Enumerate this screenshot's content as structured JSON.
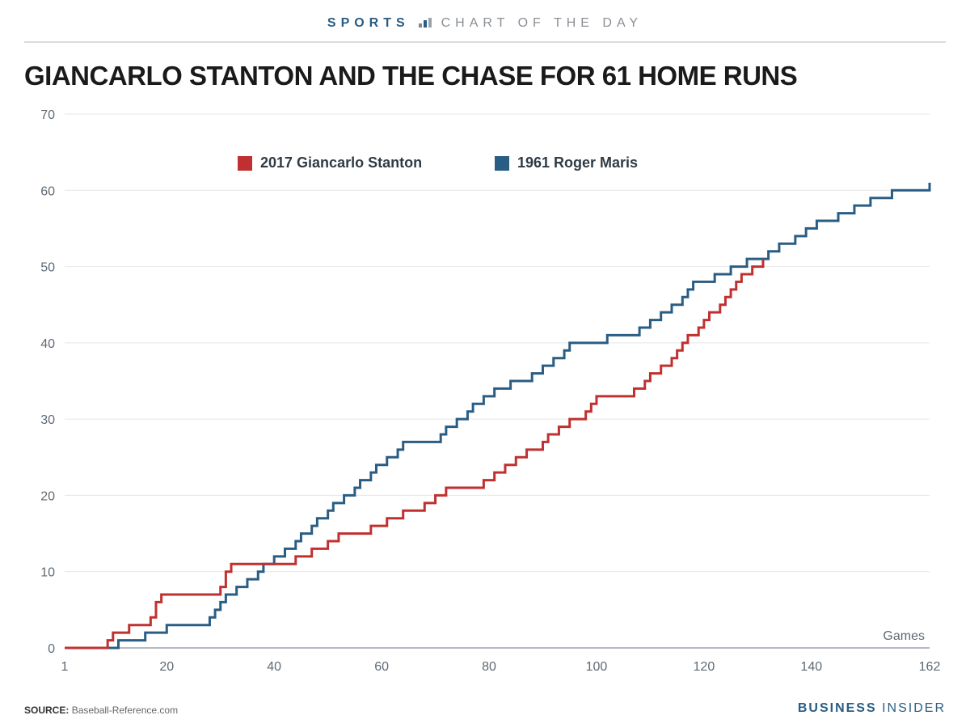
{
  "header": {
    "prefix": "SPORTS",
    "suffix": "CHART OF THE DAY"
  },
  "title": "GIANCARLO STANTON AND THE CHASE FOR 61 HOME RUNS",
  "chart": {
    "type": "line-step",
    "x_axis": {
      "label": "Games",
      "min": 1,
      "max": 162,
      "ticks": [
        1,
        20,
        40,
        60,
        80,
        100,
        120,
        140,
        162
      ]
    },
    "y_axis": {
      "min": 0,
      "max": 70,
      "ticks": [
        0,
        10,
        20,
        30,
        40,
        50,
        60,
        70
      ]
    },
    "grid_color": "#e4e7e9",
    "axis_color": "#9aa3ab",
    "background_color": "#ffffff",
    "legend": {
      "items": [
        {
          "label": "2017 Giancarlo Stanton",
          "color": "#c13030"
        },
        {
          "label": "1961 Roger Maris",
          "color": "#2a5d84"
        }
      ]
    },
    "series": [
      {
        "name": "2017 Giancarlo Stanton",
        "color": "#c13030",
        "x_max": 131,
        "values": [
          0,
          0,
          0,
          0,
          0,
          0,
          0,
          0,
          1,
          2,
          2,
          2,
          3,
          3,
          3,
          3,
          4,
          6,
          7,
          7,
          7,
          7,
          7,
          7,
          7,
          7,
          7,
          7,
          7,
          8,
          10,
          11,
          11,
          11,
          11,
          11,
          11,
          11,
          11,
          11,
          11,
          11,
          11,
          12,
          12,
          12,
          13,
          13,
          13,
          14,
          14,
          15,
          15,
          15,
          15,
          15,
          15,
          16,
          16,
          16,
          17,
          17,
          17,
          18,
          18,
          18,
          18,
          19,
          19,
          20,
          20,
          21,
          21,
          21,
          21,
          21,
          21,
          21,
          22,
          22,
          23,
          23,
          24,
          24,
          25,
          25,
          26,
          26,
          26,
          27,
          28,
          28,
          29,
          29,
          30,
          30,
          30,
          31,
          32,
          33,
          33,
          33,
          33,
          33,
          33,
          33,
          34,
          34,
          35,
          36,
          36,
          37,
          37,
          38,
          39,
          40,
          41,
          41,
          42,
          43,
          44,
          44,
          45,
          46,
          47,
          48,
          49,
          49,
          50,
          50,
          51
        ]
      },
      {
        "name": "1961 Roger Maris",
        "color": "#2a5d84",
        "x_max": 162,
        "values": [
          0,
          0,
          0,
          0,
          0,
          0,
          0,
          0,
          0,
          0,
          1,
          1,
          1,
          1,
          1,
          2,
          2,
          2,
          2,
          3,
          3,
          3,
          3,
          3,
          3,
          3,
          3,
          4,
          5,
          6,
          7,
          7,
          8,
          8,
          9,
          9,
          10,
          11,
          11,
          12,
          12,
          13,
          13,
          14,
          15,
          15,
          16,
          17,
          17,
          18,
          19,
          19,
          20,
          20,
          21,
          22,
          22,
          23,
          24,
          24,
          25,
          25,
          26,
          27,
          27,
          27,
          27,
          27,
          27,
          27,
          28,
          29,
          29,
          30,
          30,
          31,
          32,
          32,
          33,
          33,
          34,
          34,
          34,
          35,
          35,
          35,
          35,
          36,
          36,
          37,
          37,
          38,
          38,
          39,
          40,
          40,
          40,
          40,
          40,
          40,
          40,
          41,
          41,
          41,
          41,
          41,
          41,
          42,
          42,
          43,
          43,
          44,
          44,
          45,
          45,
          46,
          47,
          48,
          48,
          48,
          48,
          49,
          49,
          49,
          50,
          50,
          50,
          51,
          51,
          51,
          51,
          52,
          52,
          53,
          53,
          53,
          54,
          54,
          55,
          55,
          56,
          56,
          56,
          56,
          57,
          57,
          57,
          58,
          58,
          58,
          59,
          59,
          59,
          59,
          60,
          60,
          60,
          60,
          60,
          60,
          60,
          61
        ]
      }
    ]
  },
  "footer": {
    "source_label": "SOURCE:",
    "source_value": "Baseball-Reference.com",
    "brand_bold": "BUSINESS",
    "brand_light": "INSIDER"
  },
  "colors": {
    "accent": "#2a5d84",
    "title": "#1a1a1a",
    "text_muted": "#5f6a74"
  }
}
